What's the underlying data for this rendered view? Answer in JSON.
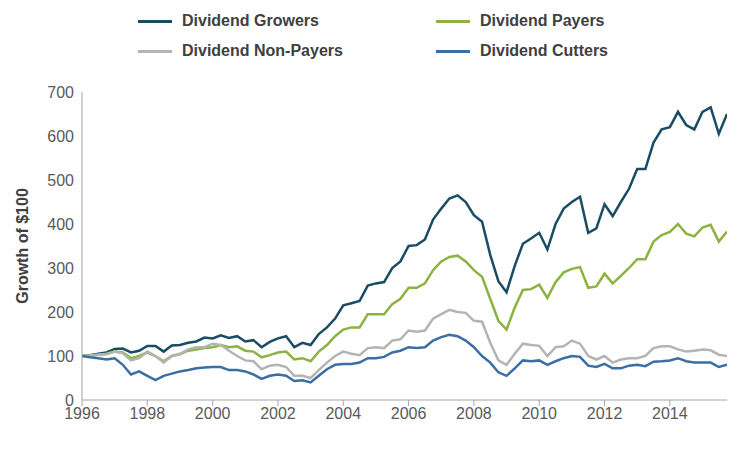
{
  "chart_data": {
    "type": "line",
    "y_label": "Growth of $100",
    "legend": "top",
    "grid": false,
    "x": [
      1996,
      1996.25,
      1996.5,
      1996.75,
      1997,
      1997.25,
      1997.5,
      1997.75,
      1998,
      1998.25,
      1998.5,
      1998.75,
      1999,
      1999.25,
      1999.5,
      1999.75,
      2000,
      2000.25,
      2000.5,
      2000.75,
      2001,
      2001.25,
      2001.5,
      2001.75,
      2002,
      2002.25,
      2002.5,
      2002.75,
      2003,
      2003.25,
      2003.5,
      2003.75,
      2004,
      2004.25,
      2004.5,
      2004.75,
      2005,
      2005.25,
      2005.5,
      2005.75,
      2006,
      2006.25,
      2006.5,
      2006.75,
      2007,
      2007.25,
      2007.5,
      2007.75,
      2008,
      2008.25,
      2008.5,
      2008.75,
      2009,
      2009.25,
      2009.5,
      2009.75,
      2010,
      2010.25,
      2010.5,
      2010.75,
      2011,
      2011.25,
      2011.5,
      2011.75,
      2012,
      2012.25,
      2012.5,
      2012.75,
      2013,
      2013.25,
      2013.5,
      2013.75,
      2014,
      2014.25,
      2014.5,
      2014.75,
      2015,
      2015.25,
      2015.5,
      2015.75
    ],
    "xlim": [
      1996,
      2015.75
    ],
    "xticks": [
      1996,
      1998,
      2000,
      2002,
      2004,
      2006,
      2008,
      2010,
      2012,
      2014
    ],
    "ylim": [
      0,
      700
    ],
    "yticks": [
      0,
      100,
      200,
      300,
      400,
      500,
      600,
      700
    ],
    "series": [
      {
        "name": "Dividend Growers",
        "color": "#1a4c63",
        "values": [
          100,
          102,
          105,
          108,
          116,
          117,
          108,
          112,
          123,
          123,
          110,
          124,
          125,
          130,
          133,
          142,
          140,
          147,
          141,
          145,
          133,
          136,
          120,
          132,
          140,
          145,
          120,
          130,
          125,
          150,
          165,
          185,
          215,
          220,
          225,
          260,
          265,
          268,
          300,
          315,
          350,
          352,
          365,
          410,
          435,
          458,
          465,
          450,
          420,
          405,
          330,
          270,
          245,
          305,
          355,
          367,
          380,
          342,
          400,
          435,
          450,
          462,
          380,
          390,
          445,
          418,
          450,
          480,
          525,
          525,
          585,
          615,
          620,
          655,
          625,
          615,
          655,
          665,
          605,
          650
        ]
      },
      {
        "name": "Dividend Payers",
        "color": "#8cb33f",
        "values": [
          100,
          101,
          103,
          105,
          110,
          108,
          95,
          100,
          108,
          100,
          88,
          100,
          104,
          112,
          115,
          118,
          120,
          125,
          120,
          122,
          112,
          110,
          97,
          102,
          108,
          110,
          92,
          95,
          88,
          110,
          125,
          145,
          160,
          165,
          165,
          195,
          195,
          195,
          218,
          230,
          255,
          255,
          265,
          295,
          315,
          325,
          328,
          315,
          295,
          280,
          230,
          180,
          160,
          210,
          250,
          252,
          262,
          232,
          268,
          290,
          298,
          302,
          255,
          258,
          287,
          265,
          282,
          300,
          320,
          320,
          360,
          375,
          382,
          400,
          378,
          372,
          392,
          398,
          360,
          383
        ]
      },
      {
        "name": "Dividend Non-Payers",
        "color": "#b4b4b4",
        "values": [
          100,
          101,
          103,
          104,
          110,
          106,
          90,
          95,
          110,
          100,
          85,
          100,
          105,
          115,
          120,
          120,
          128,
          125,
          112,
          100,
          90,
          88,
          70,
          78,
          80,
          75,
          55,
          55,
          50,
          68,
          85,
          100,
          110,
          105,
          102,
          118,
          120,
          118,
          135,
          138,
          158,
          155,
          158,
          185,
          195,
          205,
          200,
          198,
          180,
          178,
          130,
          90,
          80,
          105,
          128,
          125,
          123,
          100,
          120,
          122,
          135,
          128,
          100,
          92,
          100,
          85,
          92,
          95,
          95,
          100,
          118,
          122,
          122,
          115,
          110,
          112,
          115,
          113,
          103,
          100
        ]
      },
      {
        "name": "Dividend Cutters",
        "color": "#3a6ea5",
        "values": [
          100,
          97,
          95,
          92,
          95,
          80,
          58,
          65,
          55,
          45,
          55,
          60,
          65,
          68,
          72,
          74,
          75,
          75,
          68,
          68,
          65,
          58,
          48,
          55,
          58,
          55,
          43,
          45,
          40,
          55,
          70,
          80,
          82,
          82,
          85,
          95,
          95,
          98,
          108,
          112,
          120,
          118,
          120,
          135,
          143,
          148,
          145,
          135,
          120,
          100,
          85,
          63,
          55,
          72,
          90,
          88,
          90,
          80,
          88,
          95,
          100,
          98,
          78,
          75,
          82,
          72,
          72,
          78,
          80,
          77,
          87,
          88,
          90,
          95,
          88,
          85,
          85,
          85,
          75,
          80
        ]
      }
    ]
  }
}
